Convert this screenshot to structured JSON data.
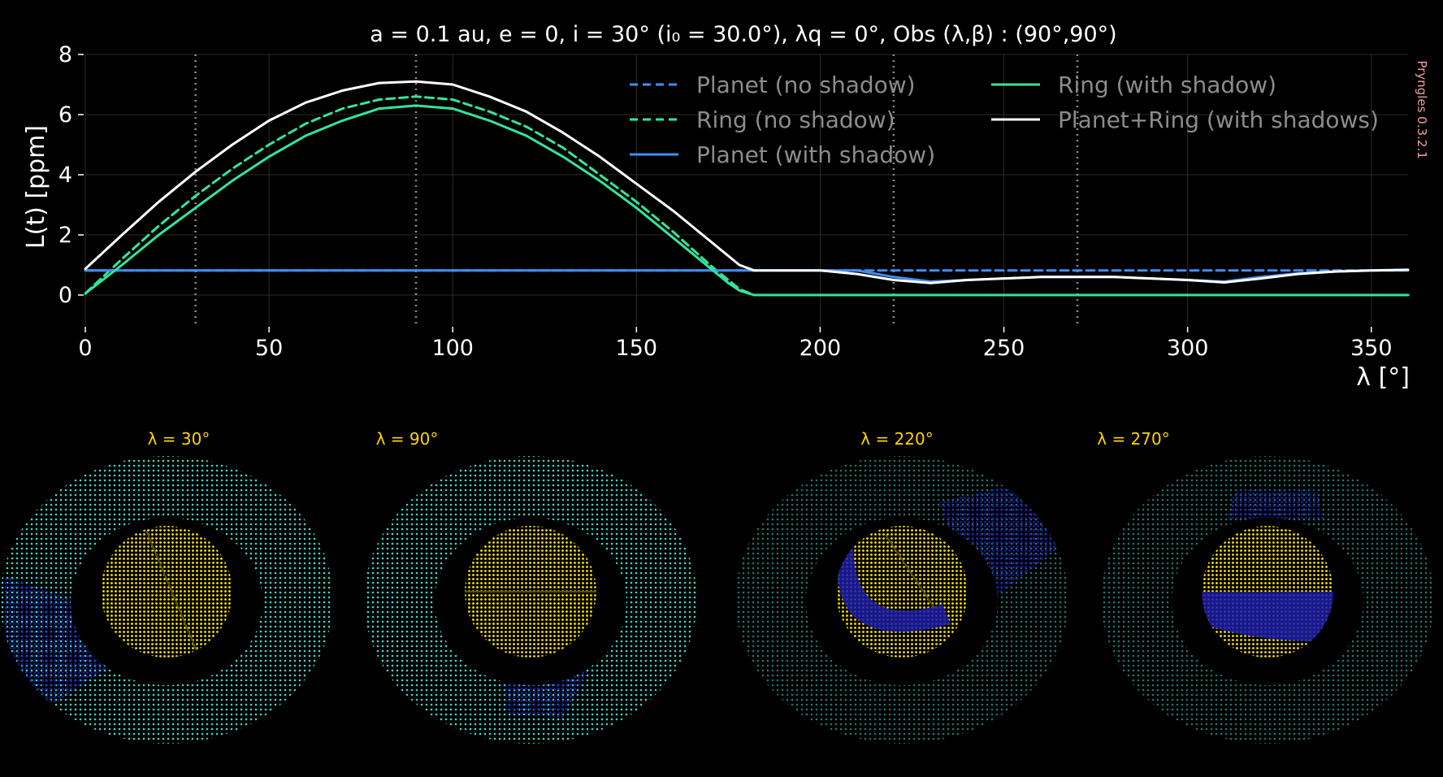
{
  "chart_data": {
    "type": "line",
    "title": "a = 0.1 au, e = 0, i = 30° (i₀ = 30.0°), λq = 0°, Obs (λ,β) : (90°,90°)",
    "xlabel": "λ [°]",
    "ylabel": "L(t) [ppm]",
    "xlim": [
      0,
      360
    ],
    "ylim": [
      -1,
      8
    ],
    "xticks": [
      0,
      50,
      100,
      150,
      200,
      250,
      300,
      350
    ],
    "yticks": [
      0,
      2,
      4,
      6,
      8
    ],
    "grid": true,
    "legend_position": "top-right",
    "vlines": [
      30,
      90,
      220,
      270
    ],
    "x": [
      0,
      10,
      20,
      30,
      40,
      50,
      60,
      70,
      80,
      90,
      100,
      110,
      120,
      130,
      140,
      150,
      160,
      170,
      175,
      178,
      182,
      190,
      200,
      210,
      220,
      230,
      240,
      250,
      260,
      270,
      280,
      290,
      300,
      310,
      320,
      330,
      340,
      350,
      360
    ],
    "series": [
      {
        "name": "Planet (no shadow)",
        "color": "#3f8ff5",
        "style": "dashed",
        "values": [
          0.82,
          0.82,
          0.82,
          0.82,
          0.82,
          0.82,
          0.82,
          0.82,
          0.82,
          0.82,
          0.82,
          0.82,
          0.82,
          0.82,
          0.82,
          0.82,
          0.82,
          0.82,
          0.82,
          0.82,
          0.82,
          0.82,
          0.82,
          0.82,
          0.82,
          0.82,
          0.82,
          0.82,
          0.82,
          0.82,
          0.82,
          0.82,
          0.82,
          0.82,
          0.82,
          0.82,
          0.82,
          0.82,
          0.82
        ]
      },
      {
        "name": "Ring (no shadow)",
        "color": "#33e59b",
        "style": "dashed",
        "values": [
          0.05,
          1.2,
          2.3,
          3.3,
          4.2,
          5.0,
          5.7,
          6.2,
          6.5,
          6.6,
          6.5,
          6.1,
          5.6,
          4.9,
          4.0,
          3.1,
          2.1,
          1.0,
          0.5,
          0.2,
          0.0,
          0.0,
          0.0,
          0.0,
          0.0,
          0.0,
          0.0,
          0.0,
          0.0,
          0.0,
          0.0,
          0.0,
          0.0,
          0.0,
          0.0,
          0.0,
          0.0,
          0.0,
          0.0
        ]
      },
      {
        "name": "Planet (with shadow)",
        "color": "#3f8ff5",
        "style": "solid",
        "values": [
          0.82,
          0.82,
          0.82,
          0.82,
          0.82,
          0.82,
          0.82,
          0.82,
          0.82,
          0.82,
          0.82,
          0.82,
          0.82,
          0.82,
          0.82,
          0.82,
          0.82,
          0.82,
          0.82,
          0.82,
          0.82,
          0.82,
          0.82,
          0.82,
          0.6,
          0.45,
          0.5,
          0.55,
          0.6,
          0.6,
          0.6,
          0.55,
          0.5,
          0.45,
          0.6,
          0.72,
          0.78,
          0.82,
          0.82
        ]
      },
      {
        "name": "Ring (with shadow)",
        "color": "#33e59b",
        "style": "solid",
        "values": [
          0.05,
          1.0,
          2.0,
          2.9,
          3.8,
          4.6,
          5.3,
          5.8,
          6.2,
          6.3,
          6.2,
          5.8,
          5.3,
          4.6,
          3.8,
          2.9,
          1.9,
          0.9,
          0.4,
          0.15,
          0.0,
          0.0,
          0.0,
          0.0,
          0.0,
          0.0,
          0.0,
          0.0,
          0.0,
          0.0,
          0.0,
          0.0,
          0.0,
          0.0,
          0.0,
          0.0,
          0.0,
          0.0,
          0.0
        ]
      },
      {
        "name": "Planet+Ring (with shadows)",
        "color": "#ffffff",
        "style": "solid",
        "values": [
          0.87,
          2.0,
          3.1,
          4.1,
          5.0,
          5.8,
          6.4,
          6.8,
          7.05,
          7.1,
          7.0,
          6.6,
          6.1,
          5.4,
          4.6,
          3.7,
          2.8,
          1.8,
          1.3,
          1.0,
          0.82,
          0.82,
          0.82,
          0.7,
          0.5,
          0.4,
          0.5,
          0.55,
          0.6,
          0.6,
          0.6,
          0.55,
          0.5,
          0.42,
          0.55,
          0.7,
          0.78,
          0.82,
          0.84
        ]
      }
    ]
  },
  "panels": [
    {
      "label": "λ = 30°",
      "lambda": 30
    },
    {
      "label": "λ = 90°",
      "lambda": 90
    },
    {
      "label": "λ = 220°",
      "lambda": 220
    },
    {
      "label": "λ = 270°",
      "lambda": 270
    }
  ],
  "watermark": "Pryngles 0.3.2.1",
  "colors": {
    "background": "#000000",
    "ring_dots": "#3fd6c6",
    "planet_dots": "#ffe600",
    "shadow": "#1a1aa8",
    "grid": "#2a2a2a",
    "vline": "#8c8c8c"
  }
}
